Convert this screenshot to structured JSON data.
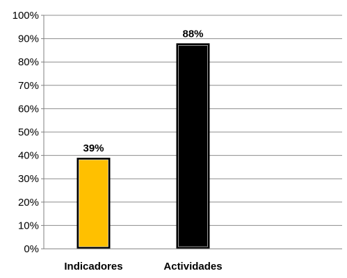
{
  "chart_data": {
    "type": "bar",
    "categories": [
      "Indicadores",
      "Actividades"
    ],
    "values": [
      39,
      88
    ],
    "data_labels": [
      "39%",
      "88%"
    ],
    "title": "",
    "xlabel": "",
    "ylabel": "",
    "ylim": [
      0,
      100
    ],
    "ytick_values": [
      0,
      10,
      20,
      30,
      40,
      50,
      60,
      70,
      80,
      90,
      100
    ],
    "ytick_labels": [
      "0%",
      "10%",
      "20%",
      "30%",
      "40%",
      "50%",
      "60%",
      "70%",
      "80%",
      "90%",
      "100%"
    ],
    "grid": true,
    "legend": "none",
    "colors": {
      "bars": [
        "#FFC000",
        "#000000"
      ],
      "bar_outline": "#000000",
      "grid": "#8c8c8c",
      "axis": "#7f7f7f"
    }
  }
}
